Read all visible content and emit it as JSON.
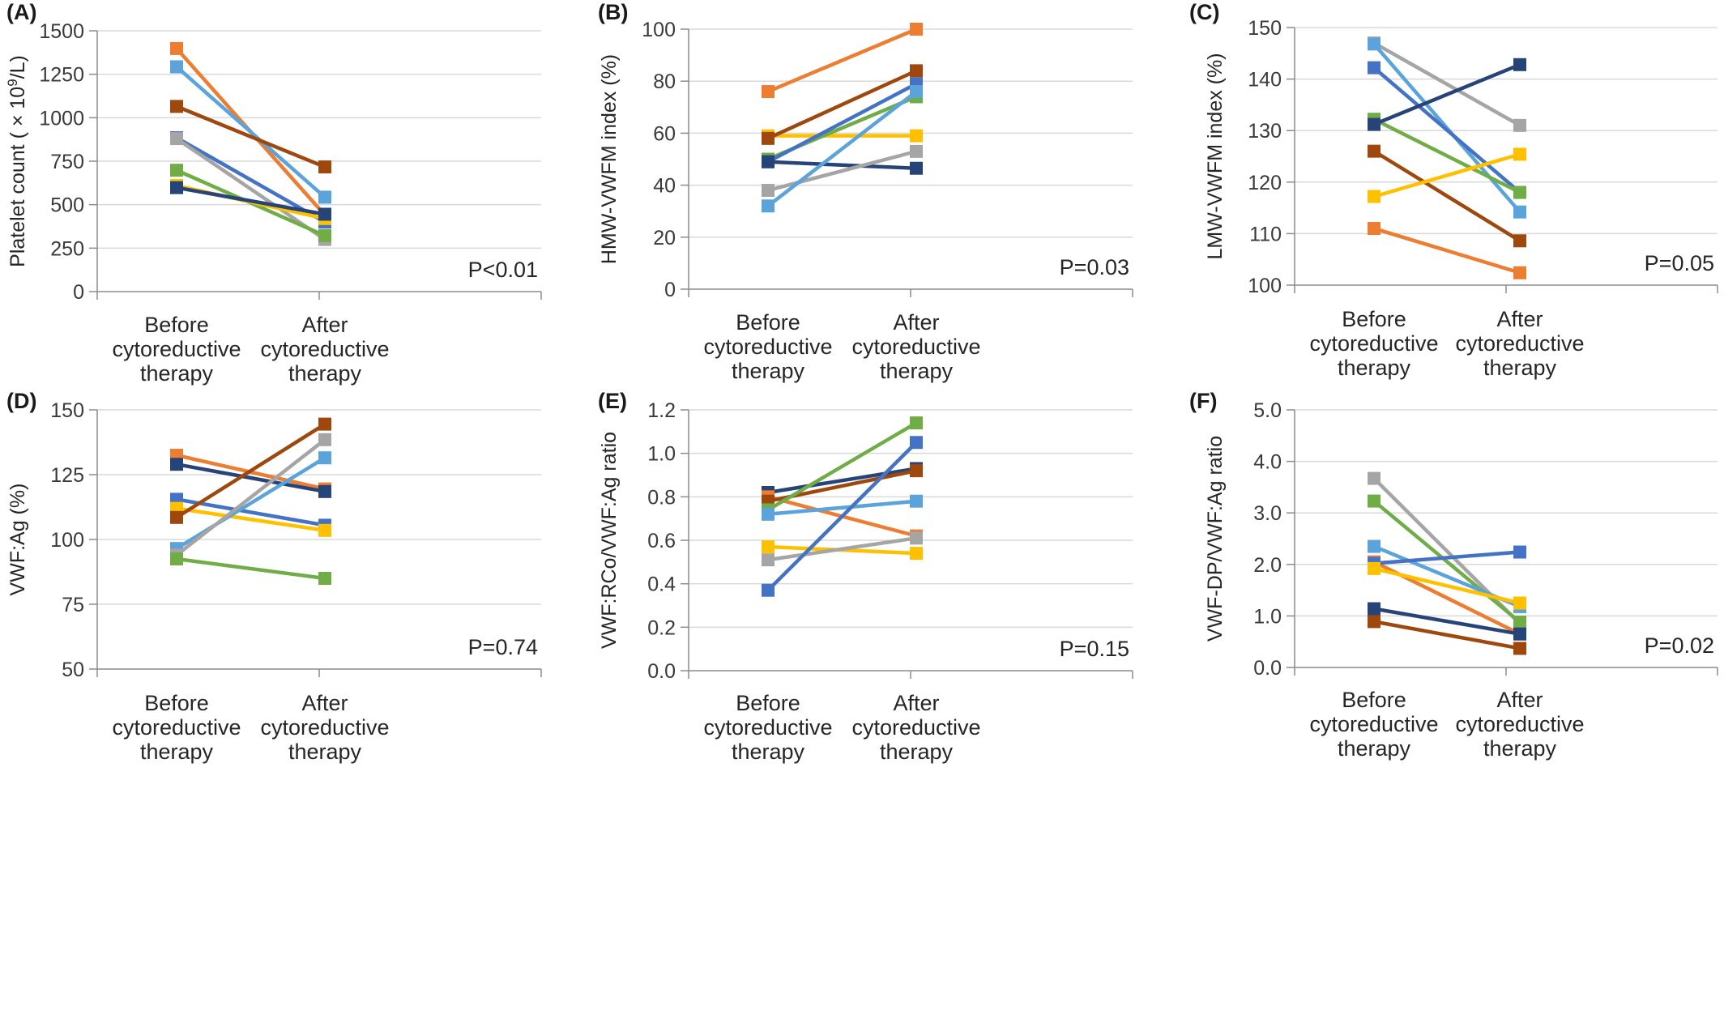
{
  "figure": {
    "categories": [
      "Before cytoreductive therapy",
      "After cytoreductive therapy"
    ],
    "category_lines": [
      [
        "Before",
        "cytoreductive",
        "therapy"
      ],
      [
        "After",
        "cytoreductive",
        "therapy"
      ]
    ],
    "series_colors": {
      "orange": "#ED7D31",
      "light_blue": "#5BA3DB",
      "brown": "#9E480E",
      "blue": "#4472C4",
      "gray": "#A5A5A5",
      "green": "#70AD47",
      "yellow": "#FFC000",
      "navy": "#264478"
    },
    "grid_color": "#D9D9D9",
    "axis_color": "#8C8C8C"
  },
  "chart_data": [
    {
      "type": "line",
      "panel_label": "(A)",
      "ylabel_parts": [
        "Platelet count ( × 10",
        "9",
        "/L)"
      ],
      "ylim": [
        0,
        1500
      ],
      "yticks": [
        "0",
        "250",
        "500",
        "750",
        "1000",
        "1250",
        "1500"
      ],
      "ytick_values": [
        0,
        250,
        500,
        750,
        1000,
        1250,
        1500
      ],
      "annotation": "P<0.01",
      "x": [
        "Before cytoreductive therapy",
        "After cytoreductive therapy"
      ],
      "series": [
        {
          "color": "orange",
          "values": [
            1398,
            440
          ]
        },
        {
          "color": "light_blue",
          "values": [
            1293,
            543
          ]
        },
        {
          "color": "brown",
          "values": [
            1065,
            717
          ]
        },
        {
          "color": "blue",
          "values": [
            885,
            400
          ]
        },
        {
          "color": "gray",
          "values": [
            880,
            300
          ]
        },
        {
          "color": "green",
          "values": [
            698,
            322
          ]
        },
        {
          "color": "yellow",
          "values": [
            610,
            420
          ]
        },
        {
          "color": "navy",
          "values": [
            598,
            445
          ]
        }
      ]
    },
    {
      "type": "line",
      "panel_label": "(B)",
      "ylabel_parts": [
        "HMW-VWFM index (%)"
      ],
      "ylim": [
        0,
        100
      ],
      "yticks": [
        "0",
        "20",
        "40",
        "60",
        "80",
        "100"
      ],
      "ytick_values": [
        0,
        20,
        40,
        60,
        80,
        100
      ],
      "annotation": "P=0.03",
      "x": [
        "Before cytoreductive therapy",
        "After cytoreductive therapy"
      ],
      "series": [
        {
          "color": "orange",
          "values": [
            76,
            100
          ]
        },
        {
          "color": "yellow",
          "values": [
            59,
            59
          ]
        },
        {
          "color": "brown",
          "values": [
            58,
            84
          ]
        },
        {
          "color": "green",
          "values": [
            50,
            74
          ]
        },
        {
          "color": "blue",
          "values": [
            49,
            79
          ]
        },
        {
          "color": "navy",
          "values": [
            49,
            46.5
          ]
        },
        {
          "color": "gray",
          "values": [
            38,
            53
          ]
        },
        {
          "color": "light_blue",
          "values": [
            32,
            76
          ]
        }
      ]
    },
    {
      "type": "line",
      "panel_label": "(C)",
      "ylabel_parts": [
        "LMW-VWFM index (%)"
      ],
      "ylim": [
        100,
        150
      ],
      "yticks": [
        "100",
        "110",
        "120",
        "130",
        "140",
        "150"
      ],
      "ytick_values": [
        100,
        110,
        120,
        130,
        140,
        150
      ],
      "annotation": "P=0.05",
      "x": [
        "Before cytoreductive therapy",
        "After cytoreductive therapy"
      ],
      "series": [
        {
          "color": "gray",
          "values": [
            147,
            131
          ]
        },
        {
          "color": "light_blue",
          "values": [
            146.8,
            114.2
          ]
        },
        {
          "color": "blue",
          "values": [
            142.2,
            118
          ]
        },
        {
          "color": "green",
          "values": [
            132.2,
            118
          ]
        },
        {
          "color": "navy",
          "values": [
            131.2,
            142.8
          ]
        },
        {
          "color": "brown",
          "values": [
            126,
            108.6
          ]
        },
        {
          "color": "yellow",
          "values": [
            117.2,
            125.4
          ]
        },
        {
          "color": "orange",
          "values": [
            111,
            102.4
          ]
        }
      ]
    },
    {
      "type": "line",
      "panel_label": "(D)",
      "ylabel_parts": [
        "VWF:Ag (%)"
      ],
      "ylim": [
        50,
        150
      ],
      "yticks": [
        "50",
        "75",
        "100",
        "125",
        "150"
      ],
      "ytick_values": [
        50,
        75,
        100,
        125,
        150
      ],
      "annotation": "P=0.74",
      "x": [
        "Before cytoreductive therapy",
        "After cytoreductive therapy"
      ],
      "series": [
        {
          "color": "orange",
          "values": [
            132.5,
            119.5
          ]
        },
        {
          "color": "navy",
          "values": [
            129,
            118.5
          ]
        },
        {
          "color": "blue",
          "values": [
            115.5,
            105.5
          ]
        },
        {
          "color": "yellow",
          "values": [
            112,
            103.5
          ]
        },
        {
          "color": "brown",
          "values": [
            108.5,
            144.5
          ]
        },
        {
          "color": "light_blue",
          "values": [
            96.5,
            131.5
          ]
        },
        {
          "color": "gray",
          "values": [
            94,
            138.5
          ]
        },
        {
          "color": "green",
          "values": [
            92.5,
            85
          ]
        }
      ]
    },
    {
      "type": "line",
      "panel_label": "(E)",
      "ylabel_parts": [
        "VWF:RCo/VWF:Ag ratio"
      ],
      "ylim": [
        0,
        1.2
      ],
      "yticks": [
        "0.0",
        "0.2",
        "0.4",
        "0.6",
        "0.8",
        "1.0",
        "1.2"
      ],
      "ytick_values": [
        0,
        0.2,
        0.4,
        0.6,
        0.8,
        1.0,
        1.2
      ],
      "annotation": "P=0.15",
      "x": [
        "Before cytoreductive therapy",
        "After cytoreductive therapy"
      ],
      "series": [
        {
          "color": "navy",
          "values": [
            0.82,
            0.93
          ]
        },
        {
          "color": "orange",
          "values": [
            0.8,
            0.62
          ]
        },
        {
          "color": "brown",
          "values": [
            0.78,
            0.92
          ]
        },
        {
          "color": "green",
          "values": [
            0.74,
            1.14
          ]
        },
        {
          "color": "light_blue",
          "values": [
            0.72,
            0.78
          ]
        },
        {
          "color": "yellow",
          "values": [
            0.57,
            0.54
          ]
        },
        {
          "color": "gray",
          "values": [
            0.51,
            0.61
          ]
        },
        {
          "color": "blue",
          "values": [
            0.37,
            1.05
          ]
        }
      ]
    },
    {
      "type": "line",
      "panel_label": "(F)",
      "ylabel_parts": [
        "VWF-DP/VWF:Ag ratio"
      ],
      "ylim": [
        0,
        5
      ],
      "yticks": [
        "0.0",
        "1.0",
        "2.0",
        "3.0",
        "4.0",
        "5.0"
      ],
      "ytick_values": [
        0,
        1,
        2,
        3,
        4,
        5
      ],
      "annotation": "P=0.02",
      "x": [
        "Before cytoreductive therapy",
        "After cytoreductive therapy"
      ],
      "series": [
        {
          "color": "gray",
          "values": [
            3.67,
            0.85
          ]
        },
        {
          "color": "green",
          "values": [
            3.23,
            0.88
          ]
        },
        {
          "color": "light_blue",
          "values": [
            2.35,
            1.18
          ]
        },
        {
          "color": "orange",
          "values": [
            2.05,
            0.65
          ]
        },
        {
          "color": "blue",
          "values": [
            2.02,
            2.24
          ]
        },
        {
          "color": "yellow",
          "values": [
            1.92,
            1.25
          ]
        },
        {
          "color": "navy",
          "values": [
            1.14,
            0.65
          ]
        },
        {
          "color": "brown",
          "values": [
            0.89,
            0.37
          ]
        }
      ]
    }
  ]
}
